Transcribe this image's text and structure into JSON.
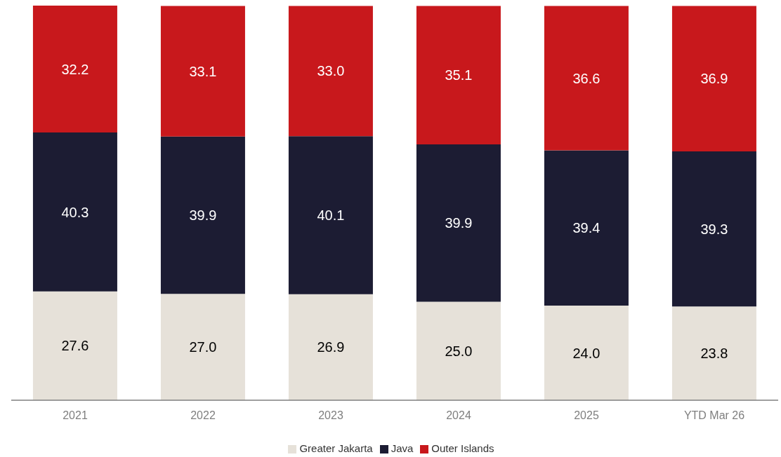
{
  "chart_data": {
    "type": "bar",
    "stacked": true,
    "categories": [
      "2021",
      "2022",
      "2023",
      "2024",
      "2025",
      "YTD Mar 26"
    ],
    "series": [
      {
        "name": "Greater Jakarta",
        "color": "#e6e1d9",
        "values": [
          27.6,
          27.0,
          26.9,
          25.0,
          24.0,
          23.8
        ],
        "value_labels": [
          "27.6",
          "27.0",
          "26.9",
          "25.0",
          "24.0",
          "23.8"
        ]
      },
      {
        "name": "Java",
        "color": "#1c1c33",
        "values": [
          40.3,
          39.9,
          40.1,
          39.9,
          39.4,
          39.3
        ]
      },
      {
        "name": "Outer Islands",
        "color": "#c8181c",
        "values": [
          32.2,
          33.1,
          33.0,
          35.1,
          36.6,
          36.9
        ],
        "value_labels": [
          "32.2",
          "33.1",
          "33.0",
          "35.1",
          "36.6",
          "36.9"
        ]
      }
    ],
    "data_labels": true,
    "grid": false,
    "legend": "bottom",
    "tick_labels": "x"
  }
}
